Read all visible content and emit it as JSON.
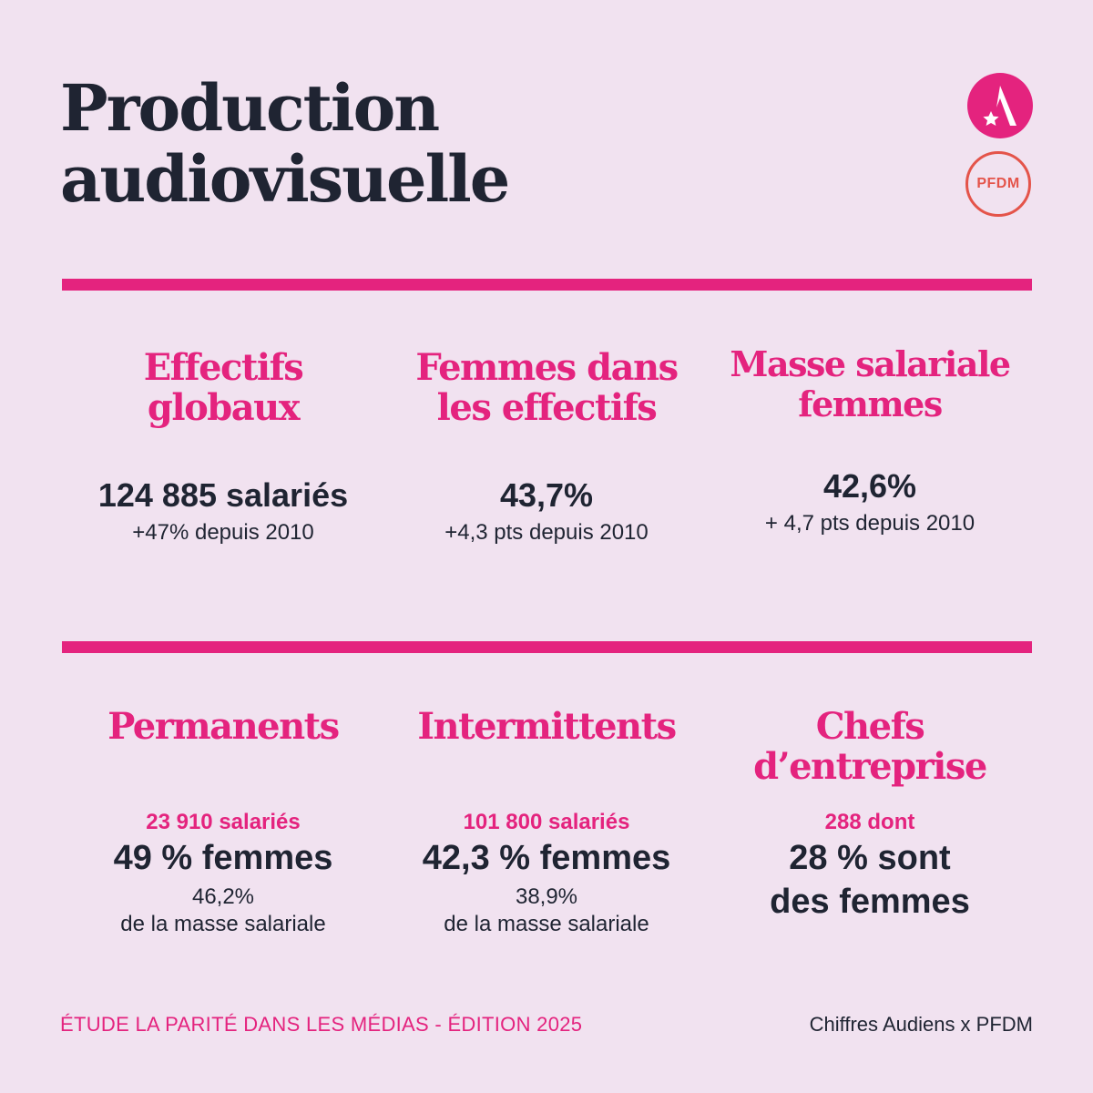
{
  "title": {
    "line1": "Production",
    "line2": "audiovisuelle"
  },
  "logos": {
    "audiens_icon": "star-a-icon",
    "pfdm_label": "PFDM"
  },
  "colors": {
    "background": "#f1e2f0",
    "accent": "#e4237e",
    "text": "#1f2432",
    "pfdm": "#e4544a"
  },
  "section1": [
    {
      "heading_line1": "Effectifs",
      "heading_line2": "globaux",
      "value": "124 885 salariés",
      "detail": "+47% depuis 2010"
    },
    {
      "heading_line1": "Femmes dans",
      "heading_line2": "les effectifs",
      "value": "43,7%",
      "detail": "+4,3 pts depuis 2010"
    },
    {
      "heading_line1": "Masse salariale",
      "heading_line2": "femmes",
      "value": "42,6%",
      "detail": "+ 4,7 pts depuis 2010"
    }
  ],
  "section2": [
    {
      "heading_line1": "Permanents",
      "count": "23 910 salariés",
      "share_line1": "49 % femmes",
      "payroll_value": "46,2%",
      "payroll_label": "de la masse salariale"
    },
    {
      "heading_line1": "Intermittents",
      "count": "101 800 salariés",
      "share_line1": "42,3 % femmes",
      "payroll_value": "38,9%",
      "payroll_label": "de la masse salariale"
    },
    {
      "heading_line1": "Chefs",
      "heading_line2": "d’entreprise",
      "count": "288 dont",
      "share_line1": "28 % sont",
      "share_line2": "des femmes"
    }
  ],
  "footer": {
    "left": "ÉTUDE LA PARITÉ DANS LES MÉDIAS - ÉDITION 2025",
    "right": "Chiffres Audiens x PFDM"
  }
}
